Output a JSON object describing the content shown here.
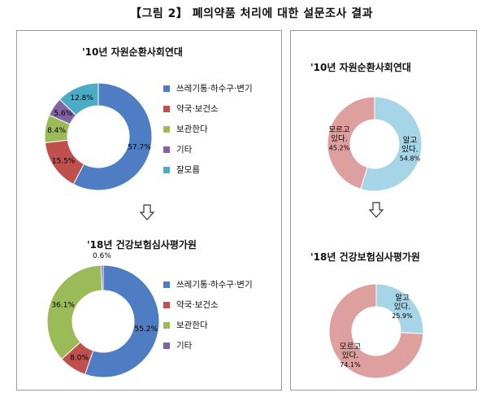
{
  "figure_title": "【그림 2】 폐의약품 처리에 대한 설문조사 결과",
  "colors": {
    "blue": "#4f7dc3",
    "red": "#c0504d",
    "green": "#9bbb59",
    "purple": "#8064a2",
    "cyan": "#4bacc6",
    "light_blue": "#a6d5e8",
    "light_red": "#dea09f",
    "border": "#9a9a9a"
  },
  "chart_data": [
    {
      "type": "donut",
      "title": "'10년 자원순환사회연대",
      "categories": [
        "쓰레기통·하수구·변기",
        "약국·보건소",
        "보관한다",
        "기타",
        "잘모름"
      ],
      "values": [
        57.7,
        15.5,
        8.4,
        5.6,
        12.8
      ],
      "value_labels": [
        "57.7%",
        "15.5%",
        "8.4%",
        "5.6%",
        "12.8%"
      ],
      "colors": [
        "#4f7dc3",
        "#c0504d",
        "#9bbb59",
        "#8064a2",
        "#4bacc6"
      ],
      "legend": "right"
    },
    {
      "type": "donut",
      "title": "'18년 건강보험심사평가원",
      "categories": [
        "쓰레기통·하수구·변기",
        "약국·보건소",
        "보관한다",
        "기타"
      ],
      "values": [
        55.2,
        8.0,
        36.1,
        0.6
      ],
      "value_labels": [
        "55.2%",
        "8.0%",
        "36.1%",
        "0.6%"
      ],
      "colors": [
        "#4f7dc3",
        "#c0504d",
        "#9bbb59",
        "#8064a2"
      ],
      "legend": "right"
    },
    {
      "type": "donut",
      "title": "'10년 자원순환사회연대",
      "categories": [
        "알고 있다.",
        "모르고 있다."
      ],
      "category_lines": [
        [
          "알고",
          "있다."
        ],
        [
          "모르고",
          "있다."
        ]
      ],
      "values": [
        54.8,
        45.2
      ],
      "value_labels": [
        "54.8%",
        "45.2%"
      ],
      "colors": [
        "#a6d5e8",
        "#dea09f"
      ]
    },
    {
      "type": "donut",
      "title": "'18년 건강보험심사평가원",
      "categories": [
        "알고 있다.",
        "모르고 있다."
      ],
      "category_lines": [
        [
          "알고",
          "있다."
        ],
        [
          "모르고",
          "있다."
        ]
      ],
      "values": [
        25.9,
        74.1
      ],
      "value_labels": [
        "25.9%",
        "74.1%"
      ],
      "colors": [
        "#a6d5e8",
        "#dea09f"
      ]
    }
  ]
}
